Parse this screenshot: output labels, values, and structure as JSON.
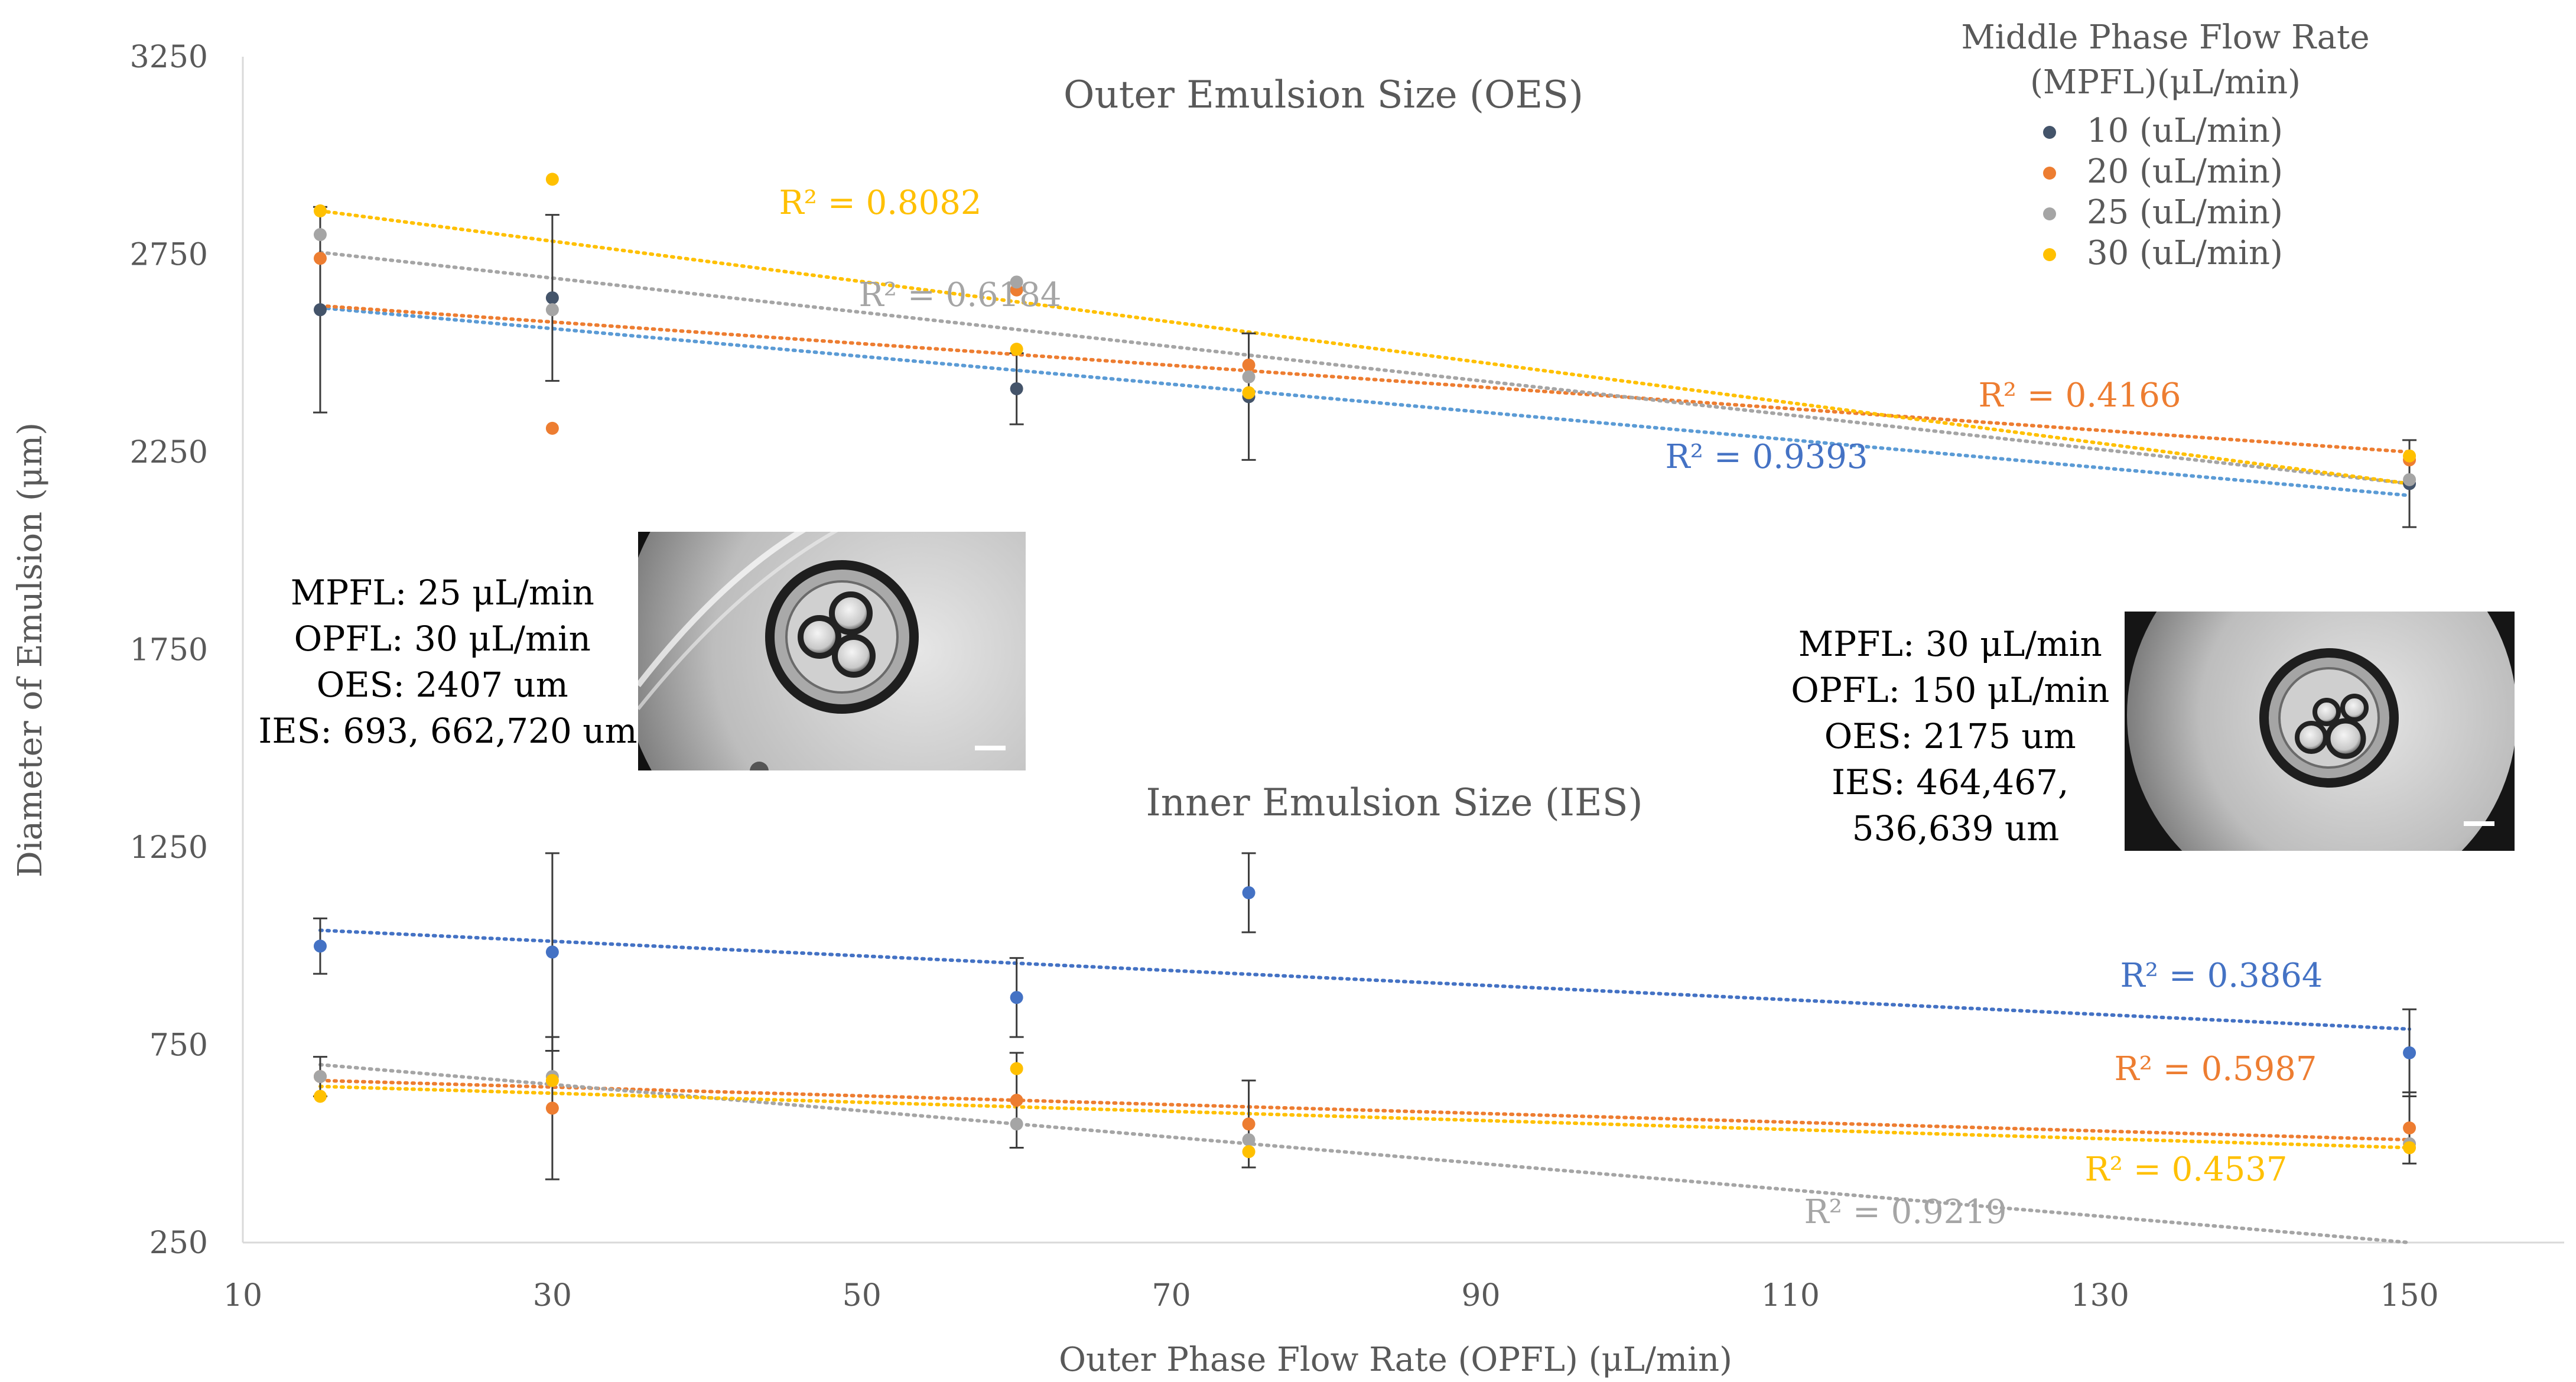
{
  "chart_data": {
    "type": "scatter",
    "xlabel": "Outer Phase Flow Rate (OPFL) (μL/min)",
    "ylabel": "Diameter of Emulsion (μm)",
    "xlim": [
      10,
      160
    ],
    "ylim": [
      250,
      3250
    ],
    "xticks": [
      10,
      30,
      50,
      70,
      90,
      110,
      130,
      150
    ],
    "yticks": [
      250,
      750,
      1250,
      1750,
      2250,
      2750,
      3250
    ],
    "legend": {
      "title_line1": "Middle Phase Flow Rate",
      "title_line2": "(MPFL)(μL/min)",
      "position": "top-right"
    },
    "annotations": {
      "oes_title": "Outer Emulsion Size (OES)",
      "ies_title": "Inner Emulsion Size (IES)",
      "left_inset": [
        "MPFL: 25 μL/min",
        "OPFL: 30 μL/min",
        "OES: 2407 um",
        "IES: 693, 662,720 um"
      ],
      "right_inset": [
        "MPFL: 30 μL/min",
        "OPFL: 150 μL/min",
        "OES: 2175 um",
        "IES: 464,467,",
        "536,639 um"
      ]
    },
    "x": [
      15,
      30,
      60,
      75,
      150
    ],
    "series": [
      {
        "name": "10 (uL/min)",
        "group": "OES",
        "color": "#44546A",
        "values": [
          2610,
          2640,
          2410,
          2390,
          2170
        ],
        "err": [
          260,
          210,
          90,
          160,
          110
        ],
        "r2": "R² = 0.9393",
        "r2_color": "#4472C4",
        "trend_color": "#5B9BD5",
        "trend": [
          2615,
          2140
        ]
      },
      {
        "name": "20 (uL/min)",
        "group": "OES",
        "color": "#ED7D31",
        "values": [
          2740,
          2310,
          2660,
          2470,
          2230
        ],
        "err": [
          0,
          0,
          0,
          0,
          0
        ],
        "r2": "R² = 0.4166",
        "r2_color": "#ED7D31",
        "trend_color": "#ED7D31",
        "trend": [
          2620,
          2250
        ]
      },
      {
        "name": "25 (uL/min)",
        "group": "OES",
        "color": "#A5A5A5",
        "values": [
          2800,
          2610,
          2680,
          2440,
          2180
        ],
        "err": [
          0,
          0,
          0,
          0,
          0
        ],
        "r2": "R² = 0.6184",
        "r2_color": "#A5A5A5",
        "trend_color": "#A5A5A5",
        "trend": [
          2755,
          2170
        ]
      },
      {
        "name": "30 (uL/min)",
        "group": "OES",
        "color": "#FFC000",
        "values": [
          2860,
          2940,
          2510,
          2400,
          2240
        ],
        "err": [
          0,
          0,
          0,
          0,
          0
        ],
        "r2": "R² = 0.8082",
        "r2_color": "#FFC000",
        "trend_color": "#FFC000",
        "trend": [
          2860,
          2170
        ]
      },
      {
        "name": "10 (uL/min)",
        "group": "IES",
        "color": "#4472C4",
        "values": [
          1000,
          985,
          870,
          1135,
          730
        ],
        "err": [
          70,
          250,
          100,
          100,
          110
        ],
        "r2": "R² = 0.3864",
        "r2_color": "#4472C4",
        "trend_color": "#4472C4",
        "trend": [
          1040,
          790
        ]
      },
      {
        "name": "20 (uL/min)",
        "group": "IES",
        "color": "#ED7D31",
        "values": [
          670,
          590,
          610,
          550,
          540
        ],
        "err": [
          50,
          180,
          120,
          110,
          90
        ],
        "r2": "R² = 0.5987",
        "r2_color": "#ED7D31",
        "trend_color": "#ED7D31",
        "trend": [
          660,
          510
        ]
      },
      {
        "name": "25 (uL/min)",
        "group": "IES",
        "color": "#A5A5A5",
        "values": [
          670,
          670,
          550,
          510,
          500
        ],
        "err": [
          0,
          0,
          0,
          0,
          0
        ],
        "r2": "R² = 0.9219",
        "r2_color": "#A5A5A5",
        "trend_color": "#A5A5A5",
        "trend": [
          700,
          250
        ]
      },
      {
        "name": "30 (uL/min)",
        "group": "IES",
        "color": "#FFC000",
        "values": [
          620,
          660,
          690,
          480,
          490
        ],
        "err": [
          0,
          0,
          0,
          0,
          0
        ],
        "r2": "R² = 0.4537",
        "r2_color": "#FFC000",
        "trend_color": "#FFC000",
        "trend": [
          645,
          490
        ]
      }
    ]
  }
}
